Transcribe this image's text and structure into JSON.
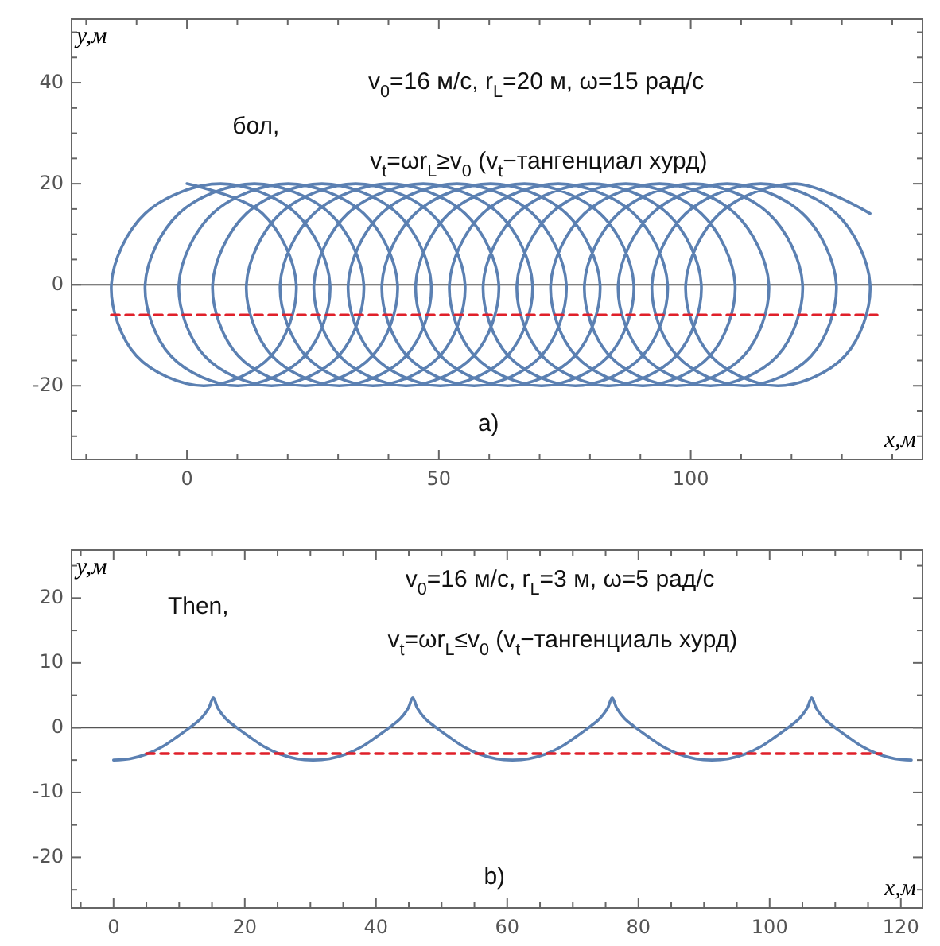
{
  "chart_data": [
    {
      "type": "line",
      "xlabel": "x,м",
      "ylabel": "y,м",
      "xlim": [
        -22.9,
        146
      ],
      "ylim": [
        -34.6,
        52.6
      ],
      "xticks": [
        {
          "value": -20,
          "label": null
        },
        {
          "value": -10,
          "label": null
        },
        0,
        {
          "value": 10,
          "label": null
        },
        {
          "value": 20,
          "label": null
        },
        {
          "value": 30,
          "label": null
        },
        {
          "value": 40,
          "label": null
        },
        50,
        {
          "value": 60,
          "label": null
        },
        {
          "value": 70,
          "label": null
        },
        {
          "value": 80,
          "label": null
        },
        {
          "value": 90,
          "label": null
        },
        100,
        {
          "value": 110,
          "label": null
        },
        {
          "value": 120,
          "label": null
        },
        {
          "value": 130,
          "label": null
        },
        {
          "value": 140,
          "label": null
        }
      ],
      "yticks": [
        {
          "value": -30,
          "label": null
        },
        {
          "value": -25,
          "label": null
        },
        -20,
        {
          "value": -15,
          "label": null
        },
        {
          "value": -10,
          "label": null
        },
        {
          "value": -5,
          "label": null
        },
        0,
        {
          "value": 5,
          "label": null
        },
        {
          "value": 10,
          "label": null
        },
        {
          "value": 15,
          "label": null
        },
        20,
        {
          "value": 25,
          "label": null
        },
        {
          "value": 30,
          "label": null
        },
        {
          "value": 35,
          "label": null
        },
        40,
        {
          "value": 45,
          "label": null
        },
        {
          "value": 50,
          "label": null
        }
      ],
      "ref_lines": [
        {
          "axis": "y",
          "value": 0,
          "color": "#555555"
        }
      ],
      "series": [
        {
          "color": "#5b80b2",
          "line_style": "solid",
          "x": [
            0,
            15.0,
            21.7,
            16.7,
            3.4,
            -10.0,
            -15.0,
            -8.3,
            6.7,
            21.7,
            28.4,
            23.4,
            10.1,
            -3.2,
            -8.3,
            -1.6,
            13.4,
            28.4,
            35.1,
            30.1,
            16.8,
            3.5,
            -1.6,
            5.1,
            20.1,
            35.1,
            41.8,
            36.8,
            23.5,
            10.2,
            5.1,
            11.8,
            26.8,
            41.8,
            48.5,
            43.5,
            30.2,
            16.9,
            11.8,
            18.5,
            33.5,
            48.5,
            55.2,
            50.2,
            36.9,
            23.6,
            18.5,
            25.2,
            40.2,
            55.2,
            61.9,
            56.9,
            43.6,
            30.3,
            25.2,
            31.9,
            46.9,
            61.9,
            68.6,
            63.6,
            50.3,
            37.0,
            32.0,
            38.6,
            53.6,
            68.6,
            75.3,
            70.3,
            57.0,
            43.7,
            38.7,
            45.3,
            60.3,
            75.3,
            82.0,
            77.0,
            63.7,
            50.4,
            45.4,
            52.0,
            67.0,
            82.0,
            88.7,
            83.7,
            70.4,
            57.1,
            52.1,
            58.7,
            73.7,
            88.7,
            95.4,
            90.4,
            77.1,
            63.8,
            58.8,
            65.5,
            80.4,
            95.4,
            102.1,
            97.1,
            83.8,
            70.5,
            65.5,
            72.2,
            87.1,
            102.1,
            108.8,
            103.8,
            90.5,
            77.2,
            72.2,
            78.9,
            93.8,
            108.8,
            115.5,
            110.5,
            97.2,
            83.9,
            78.9,
            85.6,
            100.5,
            115.5,
            122.2,
            117.2,
            103.9,
            90.6,
            85.6,
            92.3,
            107.2,
            122.2,
            128.9,
            123.9,
            110.6,
            97.3,
            92.3,
            99.0,
            113.9,
            128.9,
            135.6,
            130.6,
            117.3,
            104.0,
            99.0,
            105.7,
            120.6,
            135.6
          ],
          "values": [
            20,
            14.1,
            0,
            -14.1,
            -20,
            -14.1,
            0,
            14.1,
            20,
            14.1,
            0,
            -14.1,
            -20,
            -14.1,
            0,
            14.1,
            20,
            14.1,
            0,
            -14.1,
            -20,
            -14.1,
            0,
            14.1,
            20,
            14.1,
            0,
            -14.1,
            -20,
            -14.1,
            0,
            14.1,
            20,
            14.1,
            0,
            -14.1,
            -20,
            -14.1,
            0,
            14.1,
            20,
            14.1,
            0,
            -14.1,
            -20,
            -14.1,
            0,
            14.1,
            20,
            14.1,
            0,
            -14.1,
            -20,
            -14.1,
            0,
            14.1,
            20,
            14.1,
            0,
            -14.1,
            -20,
            -14.1,
            0,
            14.1,
            20,
            14.1,
            0,
            -14.1,
            -20,
            -14.1,
            0,
            14.1,
            20,
            14.1,
            0,
            -14.1,
            -20,
            -14.1,
            0,
            14.1,
            20,
            14.1,
            0,
            -14.1,
            -20,
            -14.1,
            0,
            14.1,
            20,
            14.1,
            0,
            -14.1,
            -20,
            -14.1,
            0,
            14.1,
            20,
            14.1,
            0,
            -14.1,
            -20,
            -14.1,
            0,
            14.1,
            20,
            14.1,
            0,
            -14.1,
            -20,
            -14.1,
            0,
            14.1,
            20,
            14.1,
            0,
            -14.1,
            -20,
            -14.1,
            0,
            14.1,
            20,
            14.1,
            0,
            -14.1,
            -20,
            -14.1,
            0,
            14.1,
            20,
            14.1,
            0,
            -14.1,
            -20,
            -14.1,
            0,
            14.1,
            20,
            14.1,
            0,
            -14.1,
            -20,
            -14.1,
            0,
            14.1,
            20,
            14.1
          ]
        },
        {
          "color": "#e0202a",
          "line_style": "dashed",
          "x": [
            -15,
            137
          ],
          "values": [
            -6,
            -6
          ]
        }
      ],
      "annotations": [
        "v$_{0}$=16 м/с, r$_{L}$=20 м, ω=15 рад/с",
        "бол,",
        "v$_{t}$=ωr$_{L}$≥v$_{0}$ (v$_{t}$−тангенциал хурд)",
        "a)"
      ]
    },
    {
      "type": "line",
      "xlabel": "x,м",
      "ylabel": "y,м",
      "xlim": [
        -6.4,
        123.3
      ],
      "ylim": [
        -27.8,
        27.4
      ],
      "xticks": [
        {
          "value": -5,
          "label": null
        },
        0,
        {
          "value": 5,
          "label": null
        },
        {
          "value": 10,
          "label": null
        },
        {
          "value": 15,
          "label": null
        },
        20,
        {
          "value": 25,
          "label": null
        },
        {
          "value": 30,
          "label": null
        },
        {
          "value": 35,
          "label": null
        },
        40,
        {
          "value": 45,
          "label": null
        },
        {
          "value": 50,
          "label": null
        },
        {
          "value": 55,
          "label": null
        },
        60,
        {
          "value": 65,
          "label": null
        },
        {
          "value": 70,
          "label": null
        },
        {
          "value": 75,
          "label": null
        },
        80,
        {
          "value": 85,
          "label": null
        },
        {
          "value": 90,
          "label": null
        },
        {
          "value": 95,
          "label": null
        },
        100,
        {
          "value": 105,
          "label": null
        },
        {
          "value": 110,
          "label": null
        },
        {
          "value": 115,
          "label": null
        },
        120
      ],
      "yticks": [
        {
          "value": -25,
          "label": null
        },
        -20,
        {
          "value": -15,
          "label": null
        },
        -10,
        {
          "value": -5,
          "label": null
        },
        0,
        {
          "value": 5,
          "label": null
        },
        10,
        {
          "value": 15,
          "label": null
        },
        20,
        {
          "value": 25,
          "label": null
        }
      ],
      "ref_lines": [
        {
          "axis": "y",
          "value": 0,
          "color": "#555555"
        }
      ],
      "series": [
        {
          "color": "#5b80b2",
          "line_style": "solid",
          "x": [
            0,
            2.5,
            5,
            7.5,
            9.7,
            12,
            13.3,
            14.5,
            15.2,
            15.9,
            17.1,
            18.4,
            20.7,
            22.9,
            25.4,
            27.9,
            30.4,
            32.9,
            35.4,
            37.9,
            40.1,
            42.4,
            43.7,
            44.9,
            45.6,
            46.3,
            47.5,
            48.8,
            51.1,
            53.3,
            55.8,
            58.3,
            60.8,
            63.3,
            65.8,
            68.3,
            70.5,
            72.8,
            74.1,
            75.3,
            76.0,
            76.7,
            77.9,
            79.2,
            81.5,
            83.7,
            86.2,
            88.7,
            91.2,
            93.7,
            96.2,
            98.7,
            100.9,
            103.2,
            104.5,
            105.7,
            106.4,
            107.1,
            108.3,
            109.6,
            111.9,
            114.1,
            116.6,
            119.1,
            121.6
          ],
          "values": [
            -5,
            -4.8,
            -4.1,
            -2.9,
            -1.4,
            0.3,
            1.4,
            3.0,
            4.6,
            3.0,
            1.4,
            0.3,
            -1.4,
            -2.9,
            -4.1,
            -4.8,
            -5,
            -4.8,
            -4.1,
            -2.9,
            -1.4,
            0.3,
            1.4,
            3.0,
            4.6,
            3.0,
            1.4,
            0.3,
            -1.4,
            -2.9,
            -4.1,
            -4.8,
            -5,
            -4.8,
            -4.1,
            -2.9,
            -1.4,
            0.3,
            1.4,
            3.0,
            4.6,
            3.0,
            1.4,
            0.3,
            -1.4,
            -2.9,
            -4.1,
            -4.8,
            -5,
            -4.8,
            -4.1,
            -2.9,
            -1.4,
            0.3,
            1.4,
            3.0,
            4.6,
            3.0,
            1.4,
            0.3,
            -1.4,
            -2.9,
            -4.1,
            -4.8,
            -5
          ]
        },
        {
          "color": "#e0202a",
          "line_style": "dashed",
          "x": [
            5,
            117
          ],
          "values": [
            -4,
            -4
          ]
        }
      ],
      "annotations": [
        "v$_{0}$=16 м/с, r$_{L}$=3 м, ω=5 рад/с",
        "Then,",
        "v$_{t}$=ωr$_{L}$≤v$_{0}$ (v$_{t}$−тангенциаль хурд)",
        "b)"
      ]
    }
  ]
}
